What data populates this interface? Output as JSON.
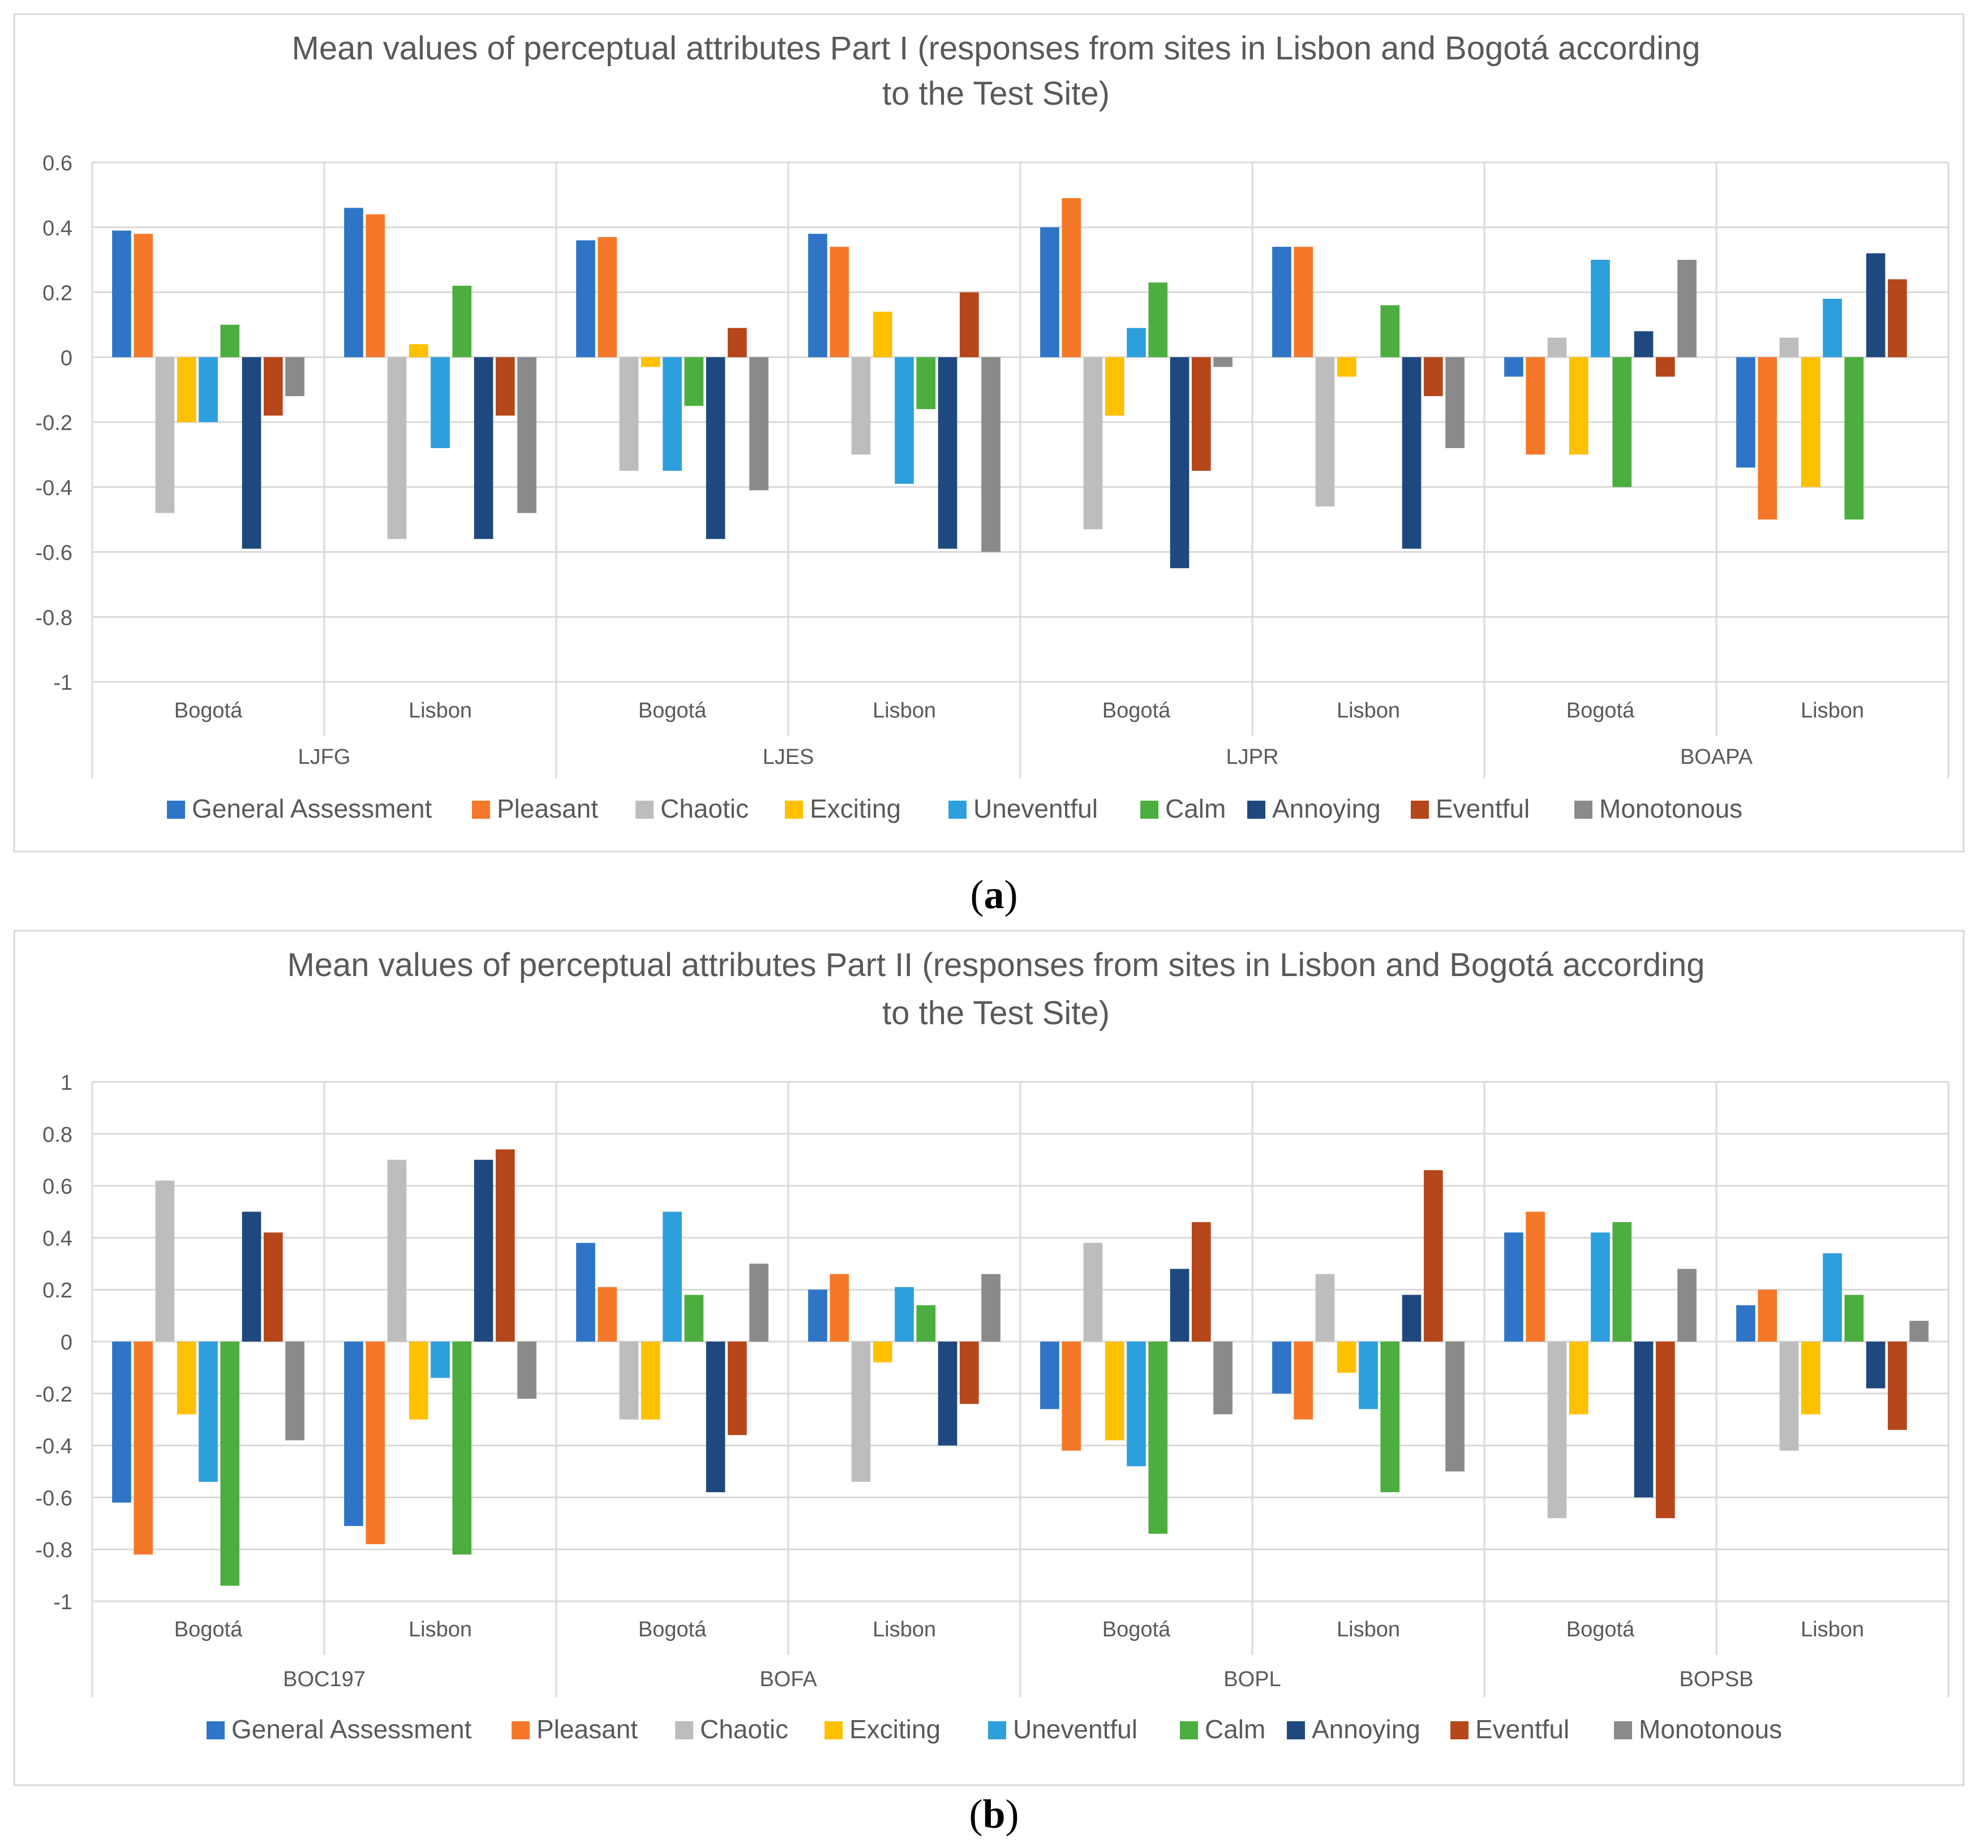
{
  "colors": {
    "General Assessment": "#2E75C8",
    "Pleasant": "#F5782A",
    "Chaotic": "#BDBDBD",
    "Exciting": "#FFC000",
    "Uneventful": "#2E9FDD",
    "Calm": "#4CAE3E",
    "Annoying": "#1F497D",
    "Eventful": "#B5471A",
    "Monotonous": "#8A8A8A"
  },
  "captions": {
    "a_letter": "a",
    "b_letter": "b"
  },
  "chart_data": [
    {
      "type": "bar",
      "title": "Mean values of perceptual attributes Part I (responses from sites in Lisbon and Bogotá according to the Test Site)",
      "title_lines": [
        "Mean values of perceptual attributes Part I (responses from sites in Lisbon and Bogotá according",
        "to the Test Site)"
      ],
      "xlabel": "",
      "ylabel": "",
      "ylim": [
        -1,
        0.6
      ],
      "yticks": [
        0.6,
        0.4,
        0.2,
        0,
        -0.2,
        -0.4,
        -0.6,
        -0.8,
        -1
      ],
      "ytick_labels": [
        "0.6",
        "0.4",
        "0.2",
        "0",
        "-0.2",
        "-0.4",
        "-0.6",
        "-0.8",
        "-1"
      ],
      "grid": true,
      "legend_position": "bottom",
      "groups": [
        "LJFG",
        "LJES",
        "LJPR",
        "BOAPA"
      ],
      "categories": [
        "Bogotá",
        "Lisbon",
        "Bogotá",
        "Lisbon",
        "Bogotá",
        "Lisbon",
        "Bogotá",
        "Lisbon"
      ],
      "series": [
        {
          "name": "General Assessment",
          "values": [
            0.39,
            0.46,
            0.36,
            0.38,
            0.4,
            0.34,
            -0.06,
            -0.34
          ]
        },
        {
          "name": "Pleasant",
          "values": [
            0.38,
            0.44,
            0.37,
            0.34,
            0.49,
            0.34,
            -0.3,
            -0.5
          ]
        },
        {
          "name": "Chaotic",
          "values": [
            -0.48,
            -0.56,
            -0.35,
            -0.3,
            -0.53,
            -0.46,
            0.06,
            0.06
          ]
        },
        {
          "name": "Exciting",
          "values": [
            -0.2,
            0.04,
            -0.03,
            0.14,
            -0.18,
            -0.06,
            -0.3,
            -0.4
          ]
        },
        {
          "name": "Uneventful",
          "values": [
            -0.2,
            -0.28,
            -0.35,
            -0.39,
            0.09,
            0.0,
            0.3,
            0.18
          ]
        },
        {
          "name": "Calm",
          "values": [
            0.1,
            0.22,
            -0.15,
            -0.16,
            0.23,
            0.16,
            -0.4,
            -0.5
          ]
        },
        {
          "name": "Annoying",
          "values": [
            -0.59,
            -0.56,
            -0.56,
            -0.59,
            -0.65,
            -0.59,
            0.08,
            0.32
          ]
        },
        {
          "name": "Eventful",
          "values": [
            -0.18,
            -0.18,
            0.09,
            0.2,
            -0.35,
            -0.12,
            -0.06,
            0.24
          ]
        },
        {
          "name": "Monotonous",
          "values": [
            -0.12,
            -0.48,
            -0.41,
            -0.6,
            -0.03,
            -0.28,
            0.3,
            0.0
          ]
        }
      ]
    },
    {
      "type": "bar",
      "title": "Mean values of perceptual attributes Part II (responses from sites in Lisbon and Bogotá according to the Test Site)",
      "title_lines": [
        "Mean values of perceptual attributes Part II (responses from sites in Lisbon and Bogotá according",
        "to the Test Site)"
      ],
      "xlabel": "",
      "ylabel": "",
      "ylim": [
        -1,
        1
      ],
      "yticks": [
        1,
        0.8,
        0.6,
        0.4,
        0.2,
        0,
        -0.2,
        -0.4,
        -0.6,
        -0.8,
        -1
      ],
      "ytick_labels": [
        "1",
        "0.8",
        "0.6",
        "0.4",
        "0.2",
        "0",
        "-0.2",
        "-0.4",
        "-0.6",
        "-0.8",
        "-1"
      ],
      "grid": true,
      "legend_position": "bottom",
      "groups": [
        "BOC197",
        "BOFA",
        "BOPL",
        "BOPSB"
      ],
      "categories": [
        "Bogotá",
        "Lisbon",
        "Bogotá",
        "Lisbon",
        "Bogotá",
        "Lisbon",
        "Bogotá",
        "Lisbon"
      ],
      "series": [
        {
          "name": "General Assessment",
          "values": [
            -0.62,
            -0.71,
            0.38,
            0.2,
            -0.26,
            -0.2,
            0.42,
            0.14
          ]
        },
        {
          "name": "Pleasant",
          "values": [
            -0.82,
            -0.78,
            0.21,
            0.26,
            -0.42,
            -0.3,
            0.5,
            0.2
          ]
        },
        {
          "name": "Chaotic",
          "values": [
            0.62,
            0.7,
            -0.3,
            -0.54,
            0.38,
            0.26,
            -0.68,
            -0.42
          ]
        },
        {
          "name": "Exciting",
          "values": [
            -0.28,
            -0.3,
            -0.3,
            -0.08,
            -0.38,
            -0.12,
            -0.28,
            -0.28
          ]
        },
        {
          "name": "Uneventful",
          "values": [
            -0.54,
            -0.14,
            0.5,
            0.21,
            -0.48,
            -0.26,
            0.42,
            0.34
          ]
        },
        {
          "name": "Calm",
          "values": [
            -0.94,
            -0.82,
            0.18,
            0.14,
            -0.74,
            -0.58,
            0.46,
            0.18
          ]
        },
        {
          "name": "Annoying",
          "values": [
            0.5,
            0.7,
            -0.58,
            -0.4,
            0.28,
            0.18,
            -0.6,
            -0.18
          ]
        },
        {
          "name": "Eventful",
          "values": [
            0.42,
            0.74,
            -0.36,
            -0.24,
            0.46,
            0.66,
            -0.68,
            -0.34
          ]
        },
        {
          "name": "Monotonous",
          "values": [
            -0.38,
            -0.22,
            0.3,
            0.26,
            -0.28,
            -0.5,
            0.28,
            0.08
          ]
        }
      ]
    }
  ]
}
